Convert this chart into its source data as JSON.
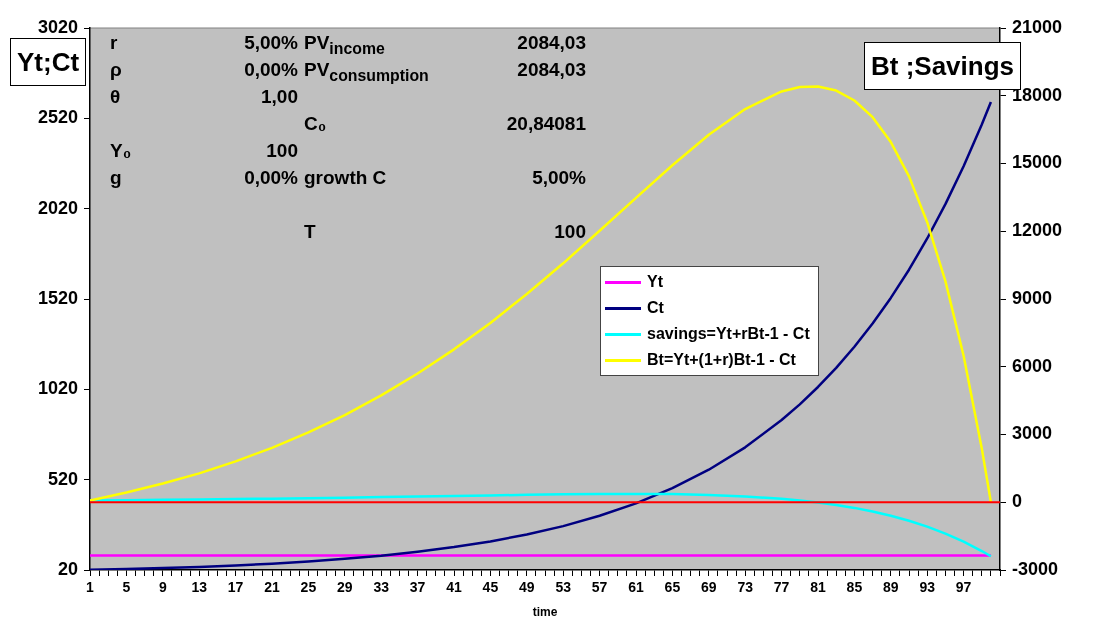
{
  "chart_data": {
    "type": "line",
    "xlabel": "time",
    "ylabel": "Yt;Ct",
    "y2label": "Bt ;Savings",
    "xlim": [
      1,
      101
    ],
    "xticks": [
      1,
      {
        "value": 2,
        "label": null
      },
      {
        "value": 3,
        "label": null
      },
      {
        "value": 4,
        "label": null
      },
      5,
      {
        "value": 6,
        "label": null
      },
      {
        "value": 7,
        "label": null
      },
      {
        "value": 8,
        "label": null
      },
      9,
      {
        "value": 10,
        "label": null
      },
      {
        "value": 11,
        "label": null
      },
      {
        "value": 12,
        "label": null
      },
      13,
      {
        "value": 14,
        "label": null
      },
      {
        "value": 15,
        "label": null
      },
      {
        "value": 16,
        "label": null
      },
      17,
      {
        "value": 18,
        "label": null
      },
      {
        "value": 19,
        "label": null
      },
      {
        "value": 20,
        "label": null
      },
      21,
      {
        "value": 22,
        "label": null
      },
      {
        "value": 23,
        "label": null
      },
      {
        "value": 24,
        "label": null
      },
      25,
      {
        "value": 26,
        "label": null
      },
      {
        "value": 27,
        "label": null
      },
      {
        "value": 28,
        "label": null
      },
      29,
      {
        "value": 30,
        "label": null
      },
      {
        "value": 31,
        "label": null
      },
      {
        "value": 32,
        "label": null
      },
      33,
      {
        "value": 34,
        "label": null
      },
      {
        "value": 35,
        "label": null
      },
      {
        "value": 36,
        "label": null
      },
      37,
      {
        "value": 38,
        "label": null
      },
      {
        "value": 39,
        "label": null
      },
      {
        "value": 40,
        "label": null
      },
      41,
      {
        "value": 42,
        "label": null
      },
      {
        "value": 43,
        "label": null
      },
      {
        "value": 44,
        "label": null
      },
      45,
      {
        "value": 46,
        "label": null
      },
      {
        "value": 47,
        "label": null
      },
      {
        "value": 48,
        "label": null
      },
      49,
      {
        "value": 50,
        "label": null
      },
      {
        "value": 51,
        "label": null
      },
      {
        "value": 52,
        "label": null
      },
      53,
      {
        "value": 54,
        "label": null
      },
      {
        "value": 55,
        "label": null
      },
      {
        "value": 56,
        "label": null
      },
      57,
      {
        "value": 58,
        "label": null
      },
      {
        "value": 59,
        "label": null
      },
      {
        "value": 60,
        "label": null
      },
      61,
      {
        "value": 62,
        "label": null
      },
      {
        "value": 63,
        "label": null
      },
      {
        "value": 64,
        "label": null
      },
      65,
      {
        "value": 66,
        "label": null
      },
      {
        "value": 67,
        "label": null
      },
      {
        "value": 68,
        "label": null
      },
      69,
      {
        "value": 70,
        "label": null
      },
      {
        "value": 71,
        "label": null
      },
      {
        "value": 72,
        "label": null
      },
      73,
      {
        "value": 74,
        "label": null
      },
      {
        "value": 75,
        "label": null
      },
      {
        "value": 76,
        "label": null
      },
      77,
      {
        "value": 78,
        "label": null
      },
      {
        "value": 79,
        "label": null
      },
      {
        "value": 80,
        "label": null
      },
      81,
      {
        "value": 82,
        "label": null
      },
      {
        "value": 83,
        "label": null
      },
      {
        "value": 84,
        "label": null
      },
      85,
      {
        "value": 86,
        "label": null
      },
      {
        "value": 87,
        "label": null
      },
      {
        "value": 88,
        "label": null
      },
      89,
      {
        "value": 90,
        "label": null
      },
      {
        "value": 91,
        "label": null
      },
      {
        "value": 92,
        "label": null
      },
      93,
      {
        "value": 94,
        "label": null
      },
      {
        "value": 95,
        "label": null
      },
      {
        "value": 96,
        "label": null
      },
      97,
      {
        "value": 98,
        "label": null
      },
      {
        "value": 99,
        "label": null
      },
      {
        "value": 100,
        "label": null
      },
      {
        "value": 101,
        "label": null
      }
    ],
    "ylim": [
      20,
      3020
    ],
    "yticks": [
      20,
      520,
      1020,
      1520,
      2020,
      2520,
      3020
    ],
    "y2lim": [
      -3000,
      21000
    ],
    "y2ticks": [
      -3000,
      0,
      3000,
      6000,
      9000,
      12000,
      15000,
      18000,
      21000
    ],
    "grid": false,
    "legend": "right",
    "marker": "none",
    "series": [
      {
        "name": "Yt",
        "color": "#ff00ff",
        "x": [
          1,
          100
        ],
        "values": [
          100,
          100
        ]
      },
      {
        "name": "Ct",
        "color": "#000080",
        "x": [
          1,
          5,
          9,
          13,
          17,
          21,
          25,
          29,
          33,
          37,
          41,
          45,
          49,
          53,
          57,
          61,
          65,
          69,
          73,
          77,
          79,
          81,
          83,
          85,
          87,
          89,
          91,
          93,
          95,
          97,
          99,
          100
        ],
        "values": [
          21,
          25,
          31,
          37,
          45,
          55,
          67,
          82,
          99,
          121,
          147,
          178,
          217,
          263,
          320,
          389,
          473,
          575,
          699,
          850,
          937,
          1033,
          1139,
          1256,
          1384,
          1526,
          1682,
          1855,
          2045,
          2255,
          2486,
          2610
        ]
      },
      {
        "name": "savings=Yt+rBt-1 - Ct",
        "color": "#00ffff",
        "axis": "y2",
        "x": [
          1,
          5,
          9,
          13,
          17,
          21,
          25,
          29,
          33,
          37,
          41,
          45,
          49,
          53,
          57,
          61,
          65,
          69,
          73,
          77,
          79,
          81,
          83,
          85,
          87,
          89,
          91,
          93,
          95,
          97,
          99,
          100
        ],
        "values": [
          80,
          90,
          110,
          120,
          140,
          160,
          180,
          200,
          230,
          250,
          280,
          300,
          330,
          350,
          360,
          370,
          360,
          320,
          260,
          150,
          80,
          -10,
          -120,
          -250,
          -410,
          -600,
          -820,
          -1080,
          -1390,
          -1740,
          -2160,
          -2390
        ]
      },
      {
        "name": "Bt=Yt+(1+r)Bt-1 - Ct",
        "color": "#ffff00",
        "axis": "y2",
        "x": [
          1,
          5,
          9,
          13,
          17,
          21,
          25,
          29,
          33,
          37,
          41,
          45,
          49,
          53,
          57,
          61,
          65,
          69,
          73,
          77,
          79,
          81,
          83,
          85,
          87,
          89,
          91,
          93,
          95,
          97,
          99,
          100
        ],
        "values": [
          80,
          430,
          830,
          1280,
          1810,
          2410,
          3090,
          3860,
          4730,
          5700,
          6770,
          7940,
          9220,
          10580,
          12020,
          13480,
          14920,
          16270,
          17410,
          18190,
          18390,
          18410,
          18230,
          17790,
          17050,
          15950,
          14430,
          12400,
          9790,
          6490,
          2380,
          0
        ]
      }
    ],
    "ref_lines": [
      {
        "axis": "y2",
        "value": 0,
        "color": "#ff0000"
      }
    ],
    "annotations": [
      "r",
      "5,00%",
      "PV$_{income}$",
      "2084,03",
      "ρ",
      "0,00%",
      "PV$_{consumption}$",
      "2084,03",
      "θ",
      "1,00",
      "C₀",
      "20,84081",
      "Y₀",
      "100",
      "g",
      "0,00%",
      "growth C",
      "5,00%",
      "T",
      "100"
    ]
  }
}
